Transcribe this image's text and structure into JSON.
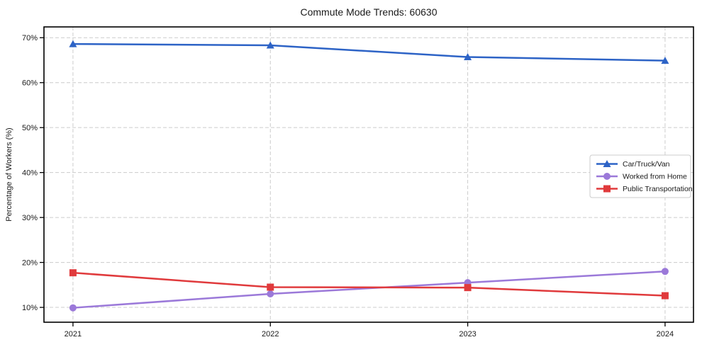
{
  "chart_data": {
    "type": "line",
    "title": "Commute Mode Trends: 60630",
    "xlabel": "",
    "ylabel": "Percentage of Workers (%)",
    "x": [
      2021,
      2022,
      2023,
      2024
    ],
    "x_tick_labels": [
      "2021",
      "2022",
      "2023",
      "2024"
    ],
    "y_ticks": [
      10,
      20,
      30,
      40,
      50,
      60,
      70
    ],
    "y_tick_labels": [
      "10%",
      "20%",
      "30%",
      "40%",
      "50%",
      "60%",
      "70%"
    ],
    "xlim": [
      2020.853,
      2024.144
    ],
    "ylim": [
      6.7,
      72.4
    ],
    "grid": true,
    "grid_color": "#cccccc",
    "legend_position": "center-right",
    "series": [
      {
        "name": "Car/Truck/Van",
        "color": "#2d63c6",
        "marker": "triangle",
        "values": [
          68.6,
          68.3,
          65.7,
          64.9
        ]
      },
      {
        "name": "Worked from Home",
        "color": "#9b79d9",
        "marker": "circle",
        "values": [
          9.9,
          13.0,
          15.5,
          18.0
        ]
      },
      {
        "name": "Public Transportation",
        "color": "#e03a3c",
        "marker": "square",
        "values": [
          17.7,
          14.5,
          14.4,
          12.6
        ]
      }
    ]
  }
}
